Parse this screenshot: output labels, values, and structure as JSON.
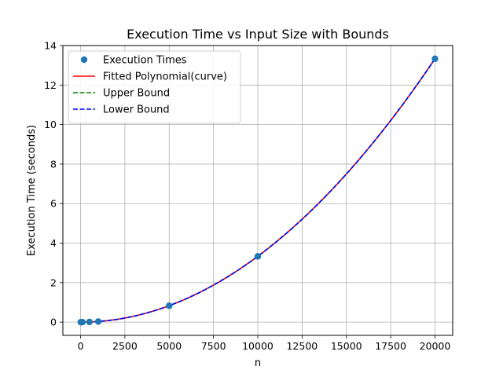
{
  "chart_data": {
    "type": "line",
    "title": "Execution Time vs Input Size with Bounds",
    "xlabel": "n",
    "ylabel": "Execution Time (seconds)",
    "xlim": [
      -1000,
      21000
    ],
    "ylim": [
      -0.67,
      14.0
    ],
    "xticks": [
      0,
      2500,
      5000,
      7500,
      10000,
      12500,
      15000,
      17500,
      20000
    ],
    "yticks": [
      0,
      2,
      4,
      6,
      8,
      10,
      12,
      14
    ],
    "grid": true,
    "legend_position": "top-left",
    "series": [
      {
        "name": "Execution Times",
        "kind": "scatter",
        "color": "#1f77b4",
        "x": [
          10,
          100,
          500,
          1000,
          5000,
          10000,
          20000
        ],
        "y": [
          0.0,
          0.0,
          0.01,
          0.03,
          0.83,
          3.33,
          13.33
        ]
      },
      {
        "name": "Fitted Polynomial(curve)",
        "kind": "line",
        "style": "solid",
        "color": "#ff0000",
        "coefficients": {
          "a2": 3.333e-08,
          "a1": 0.0,
          "a0": 0.0
        }
      },
      {
        "name": "Upper Bound",
        "kind": "line",
        "style": "dashed",
        "color": "#008000",
        "coefficients": {
          "a2": 3.333e-08,
          "a1": 0.0,
          "a0": 0.0
        }
      },
      {
        "name": "Lower Bound",
        "kind": "line",
        "style": "dashed",
        "color": "#0000ff",
        "coefficients": {
          "a2": 3.333e-08,
          "a1": 0.0,
          "a0": 0.0
        }
      }
    ]
  }
}
